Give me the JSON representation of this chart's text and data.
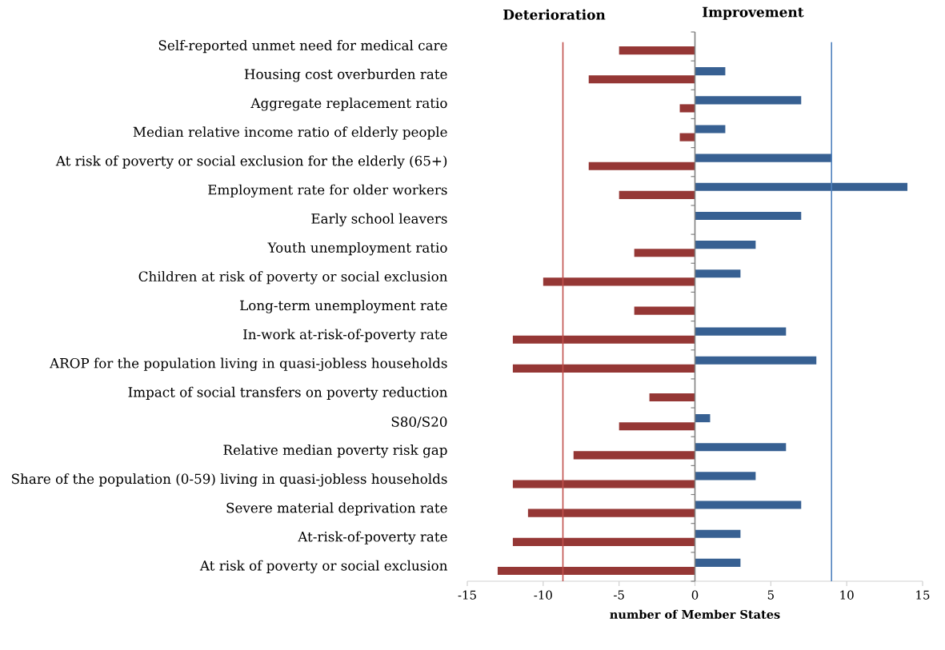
{
  "chart_data": {
    "type": "bar",
    "orientation": "horizontal",
    "xlabel": "number of Member States",
    "annotations": [
      "Deterioration",
      "Improvement"
    ],
    "categories": [
      "Self-reported unmet need for medical care",
      "Housing cost overburden rate",
      "Aggregate replacement ratio",
      "Median relative income ratio of elderly people",
      "At risk of poverty or social exclusion for the elderly (65+)",
      "Employment rate for older workers",
      "Early school leavers",
      "Youth unemployment ratio",
      "Children at risk of poverty or social exclusion",
      "Long-term unemployment rate",
      "In-work at-risk-of-poverty rate",
      "AROP for the population living in quasi-jobless households",
      "Impact of social transfers on poverty reduction",
      "S80/S20",
      "Relative median poverty risk gap",
      "Share of the population (0-59) living in quasi-jobless households",
      "Severe material deprivation rate",
      "At-risk-of-poverty rate",
      "At risk of poverty or social exclusion"
    ],
    "series": [
      {
        "color": "#376092",
        "values": [
          null,
          2,
          7,
          2,
          9,
          14,
          7,
          4,
          3,
          null,
          6,
          8,
          null,
          1,
          6,
          4,
          7,
          3,
          3
        ]
      },
      {
        "color": "#953735",
        "values": [
          -5,
          -7,
          -1,
          -1,
          -7,
          -5,
          null,
          -4,
          -10,
          -4,
          -12,
          -12,
          -3,
          -5,
          -8,
          -12,
          -11,
          -12,
          -13
        ]
      }
    ],
    "xlim": [
      -15,
      15
    ],
    "xticks": [
      -15,
      -10,
      -5,
      0,
      5,
      10,
      15
    ],
    "ref_lines": [
      {
        "axis": "x",
        "value": -8.7,
        "color": "#c0504d"
      },
      {
        "axis": "x",
        "value": 9,
        "color": "#4f81bd"
      }
    ]
  }
}
